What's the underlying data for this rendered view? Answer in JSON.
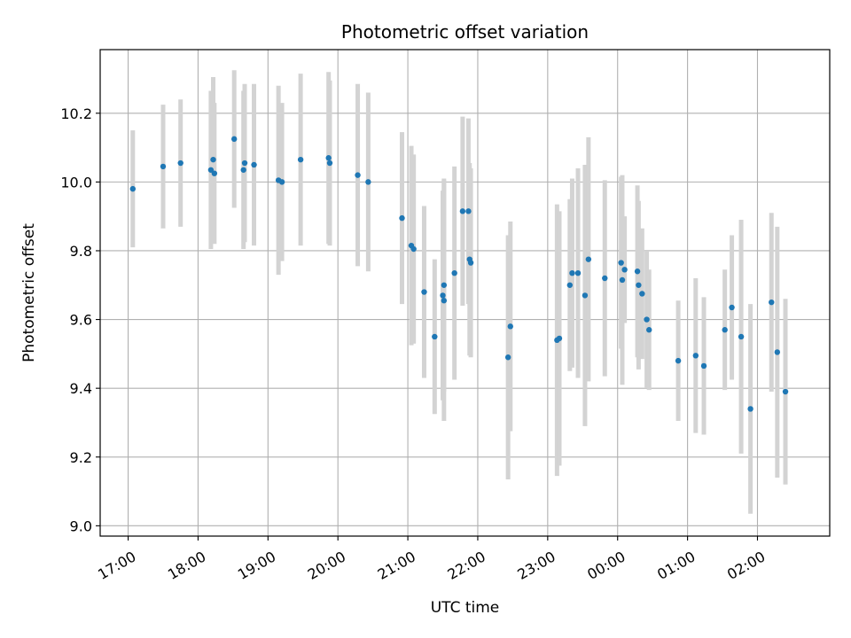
{
  "chart_data": {
    "type": "scatter",
    "title": "Photometric offset variation",
    "xlabel": "UTC time",
    "ylabel": "Photometric offset",
    "grid": true,
    "legend": "none",
    "x_is_time": true,
    "xlim": [
      "16:36",
      "03:02"
    ],
    "ylim": [
      8.97,
      10.385
    ],
    "x_ticks": [
      "17:00",
      "18:00",
      "19:00",
      "20:00",
      "21:00",
      "22:00",
      "23:00",
      "00:00",
      "01:00",
      "02:00"
    ],
    "y_ticks": [
      9.0,
      9.2,
      9.4,
      9.6,
      9.8,
      10.0,
      10.2
    ],
    "point_color": "#1f77b4",
    "errorbar_color": "#d3d3d3",
    "x": [
      "17:04",
      "17:30",
      "17:45",
      "18:11",
      "18:13",
      "18:14",
      "18:31",
      "18:39",
      "18:40",
      "18:48",
      "19:09",
      "19:12",
      "19:28",
      "19:52",
      "19:53",
      "20:17",
      "20:26",
      "20:55",
      "21:03",
      "21:05",
      "21:14",
      "21:23",
      "21:30",
      "21:31",
      "21:31",
      "21:40",
      "21:47",
      "21:52",
      "21:53",
      "21:54",
      "22:26",
      "22:28",
      "23:08",
      "23:10",
      "23:19",
      "23:21",
      "23:26",
      "23:32",
      "23:35",
      "23:49",
      "24:03",
      "24:04",
      "24:06",
      "24:17",
      "24:18",
      "24:21",
      "24:25",
      "24:27",
      "24:52",
      "25:07",
      "25:14",
      "25:32",
      "25:38",
      "25:46",
      "25:54",
      "26:12",
      "26:17",
      "26:24"
    ],
    "y": [
      9.98,
      10.045,
      10.055,
      10.035,
      10.065,
      10.025,
      10.125,
      10.035,
      10.055,
      10.05,
      10.005,
      10.0,
      10.065,
      10.07,
      10.055,
      10.02,
      10.0,
      9.895,
      9.815,
      9.805,
      9.68,
      9.55,
      9.67,
      9.655,
      9.7,
      9.735,
      9.915,
      9.915,
      9.775,
      9.765,
      9.49,
      9.58,
      9.54,
      9.545,
      9.7,
      9.735,
      9.735,
      9.67,
      9.775,
      9.72,
      9.765,
      9.715,
      9.745,
      9.74,
      9.7,
      9.675,
      9.6,
      9.57,
      9.48,
      9.495,
      9.465,
      9.57,
      9.635,
      9.55,
      9.34,
      9.65,
      9.505,
      9.39
    ],
    "yerr": [
      0.17,
      0.18,
      0.185,
      0.23,
      0.24,
      0.205,
      0.2,
      0.23,
      0.23,
      0.235,
      0.275,
      0.23,
      0.25,
      0.25,
      0.24,
      0.265,
      0.26,
      0.25,
      0.29,
      0.275,
      0.25,
      0.225,
      0.305,
      0.35,
      0.31,
      0.31,
      0.275,
      0.27,
      0.28,
      0.275,
      0.355,
      0.305,
      0.395,
      0.37,
      0.25,
      0.275,
      0.305,
      0.38,
      0.355,
      0.285,
      0.25,
      0.305,
      0.155,
      0.25,
      0.245,
      0.19,
      0.2,
      0.175,
      0.175,
      0.225,
      0.2,
      0.175,
      0.21,
      0.34,
      0.305,
      0.26,
      0.365,
      0.27
    ]
  }
}
